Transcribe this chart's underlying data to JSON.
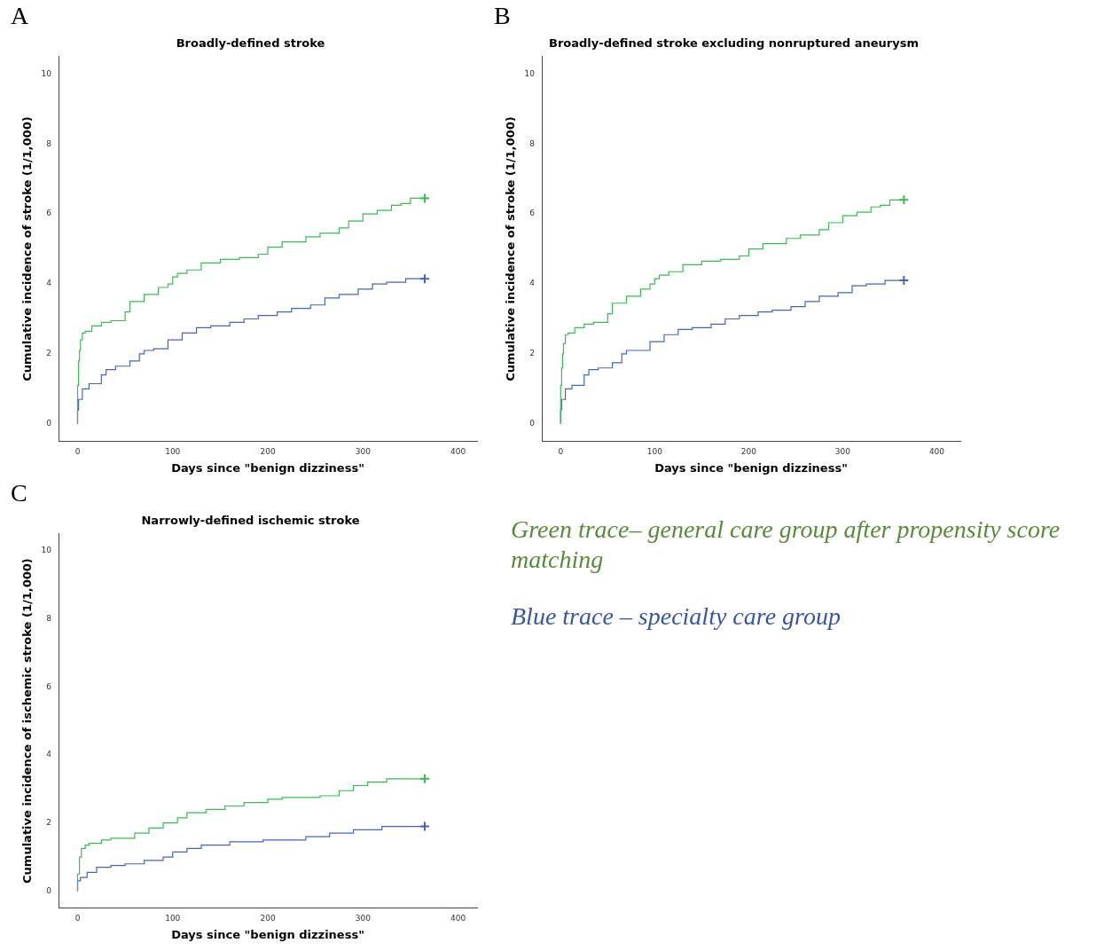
{
  "chart_data": [
    {
      "type": "step",
      "title": "Broadly-defined stroke",
      "xlabel": "Days since \"benign dizziness\"",
      "ylabel": "Cumulative incidence of stroke (1/1,000)",
      "annotations": [
        "A"
      ],
      "xlim": [
        -20,
        420
      ],
      "xticks": [
        0,
        100,
        200,
        300,
        400
      ],
      "ylim": [
        -0.5,
        10.5
      ],
      "yticks": [
        0,
        2,
        4,
        6,
        8,
        10
      ],
      "grid": false,
      "legend": false,
      "marker": "none",
      "series": [
        {
          "color": "#3cb956",
          "x": [
            0,
            1,
            2,
            3,
            5,
            8,
            15,
            25,
            35,
            50,
            55,
            70,
            85,
            95,
            100,
            105,
            115,
            130,
            150,
            170,
            190,
            200,
            215,
            240,
            255,
            275,
            285,
            300,
            315,
            330,
            340,
            350,
            355,
            365
          ],
          "values": [
            0,
            1.1,
            1.8,
            2.1,
            2.4,
            2.6,
            2.65,
            2.8,
            2.9,
            2.95,
            3.2,
            3.5,
            3.7,
            3.9,
            4.0,
            4.2,
            4.3,
            4.4,
            4.6,
            4.7,
            4.75,
            4.85,
            5.05,
            5.2,
            5.35,
            5.45,
            5.6,
            5.8,
            6.0,
            6.1,
            6.25,
            6.3,
            6.45,
            6.45
          ]
        },
        {
          "color": "#4565b8",
          "x": [
            0,
            1,
            5,
            12,
            25,
            30,
            40,
            55,
            65,
            70,
            80,
            95,
            110,
            125,
            140,
            160,
            175,
            190,
            210,
            225,
            245,
            260,
            275,
            295,
            310,
            325,
            345,
            360,
            365
          ],
          "values": [
            0,
            0.4,
            0.7,
            1.0,
            1.15,
            1.4,
            1.55,
            1.65,
            1.8,
            2.0,
            2.1,
            2.15,
            2.4,
            2.6,
            2.75,
            2.8,
            2.9,
            3.0,
            3.1,
            3.2,
            3.3,
            3.4,
            3.6,
            3.7,
            3.85,
            4.0,
            4.05,
            4.15,
            4.15
          ]
        },
        {
          "type": "scatter",
          "marker": "cross",
          "color": "#3cb956",
          "x": [
            365
          ],
          "values": [
            6.45
          ]
        },
        {
          "type": "scatter",
          "marker": "cross",
          "color": "#4565b8",
          "x": [
            365
          ],
          "values": [
            4.15
          ]
        }
      ]
    },
    {
      "type": "step",
      "title": "Broadly-defined stroke excluding nonruptured aneurysm",
      "xlabel": "Days since \"benign dizziness\"",
      "ylabel": "Cumulative incidence of stroke (1/1,000)",
      "annotations": [
        "B"
      ],
      "xlim": [
        -20,
        425
      ],
      "xticks": [
        0,
        100,
        200,
        300,
        400
      ],
      "ylim": [
        -0.5,
        10.5
      ],
      "yticks": [
        0,
        2,
        4,
        6,
        8,
        10
      ],
      "grid": false,
      "legend": false,
      "marker": "none",
      "series": [
        {
          "color": "#3cb956",
          "x": [
            0,
            1,
            2,
            3,
            5,
            8,
            15,
            25,
            35,
            50,
            55,
            70,
            85,
            95,
            100,
            105,
            115,
            130,
            150,
            170,
            190,
            200,
            215,
            240,
            255,
            275,
            285,
            300,
            315,
            330,
            340,
            350,
            355,
            365
          ],
          "values": [
            0,
            1.1,
            1.6,
            2.0,
            2.3,
            2.55,
            2.6,
            2.75,
            2.85,
            2.9,
            3.15,
            3.45,
            3.65,
            3.85,
            4.0,
            4.15,
            4.25,
            4.35,
            4.55,
            4.65,
            4.7,
            4.8,
            5.0,
            5.15,
            5.3,
            5.4,
            5.55,
            5.75,
            5.95,
            6.05,
            6.2,
            6.25,
            6.4,
            6.4
          ]
        },
        {
          "color": "#4565b8",
          "x": [
            0,
            1,
            5,
            12,
            25,
            30,
            40,
            55,
            65,
            70,
            80,
            95,
            110,
            125,
            140,
            160,
            175,
            190,
            210,
            225,
            245,
            260,
            275,
            295,
            310,
            325,
            345,
            360,
            365
          ],
          "values": [
            0,
            0.4,
            0.7,
            1.0,
            1.1,
            1.4,
            1.55,
            1.6,
            1.75,
            2.0,
            2.1,
            2.1,
            2.35,
            2.55,
            2.7,
            2.75,
            2.85,
            3.0,
            3.1,
            3.2,
            3.25,
            3.35,
            3.5,
            3.65,
            3.75,
            3.95,
            4.0,
            4.1,
            4.1
          ]
        },
        {
          "type": "scatter",
          "marker": "cross",
          "color": "#3cb956",
          "x": [
            365
          ],
          "values": [
            6.4
          ]
        },
        {
          "type": "scatter",
          "marker": "cross",
          "color": "#4565b8",
          "x": [
            365
          ],
          "values": [
            4.1
          ]
        }
      ]
    },
    {
      "type": "step",
      "title": "Narrowly-defined ischemic stroke",
      "xlabel": "Days since \"benign dizziness\"",
      "ylabel": "Cumulative incidence of ischemic stroke (1/1,000)",
      "annotations": [
        "C"
      ],
      "xlim": [
        -20,
        420
      ],
      "xticks": [
        0,
        100,
        200,
        300,
        400
      ],
      "ylim": [
        -0.5,
        10.5
      ],
      "yticks": [
        0,
        2,
        4,
        6,
        8,
        10
      ],
      "grid": false,
      "legend": false,
      "marker": "none",
      "series": [
        {
          "color": "#3cb956",
          "x": [
            0,
            2,
            4,
            8,
            12,
            25,
            35,
            60,
            75,
            90,
            105,
            115,
            135,
            155,
            175,
            200,
            215,
            255,
            275,
            290,
            305,
            325,
            355,
            365
          ],
          "values": [
            0,
            0.5,
            1.0,
            1.25,
            1.35,
            1.4,
            1.5,
            1.55,
            1.7,
            1.85,
            2.0,
            2.15,
            2.3,
            2.4,
            2.5,
            2.6,
            2.7,
            2.75,
            2.8,
            2.95,
            3.1,
            3.2,
            3.3,
            3.3
          ]
        },
        {
          "color": "#4565b8",
          "x": [
            0,
            3,
            10,
            20,
            35,
            50,
            70,
            90,
            100,
            115,
            130,
            160,
            195,
            240,
            265,
            290,
            320,
            345,
            365
          ],
          "values": [
            0,
            0.3,
            0.4,
            0.55,
            0.7,
            0.75,
            0.8,
            0.9,
            1.0,
            1.15,
            1.25,
            1.35,
            1.45,
            1.5,
            1.6,
            1.7,
            1.8,
            1.9,
            1.9
          ]
        },
        {
          "type": "scatter",
          "marker": "cross",
          "color": "#3cb956",
          "x": [
            365
          ],
          "values": [
            3.3
          ]
        },
        {
          "type": "scatter",
          "marker": "cross",
          "color": "#4565b8",
          "x": [
            365
          ],
          "values": [
            1.9
          ]
        }
      ]
    },
    {
      "type": "other",
      "annotations": [
        "Green trace– general care group after propensity score matching",
        "Blue trace – specialty care group"
      ]
    }
  ]
}
